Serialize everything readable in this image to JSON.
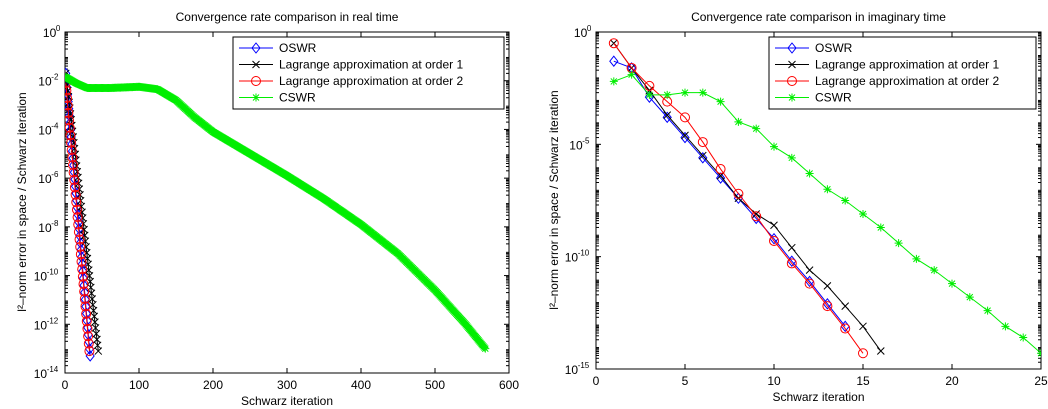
{
  "chart_data": [
    {
      "type": "line",
      "title": "Convergence rate comparison in real time",
      "xlabel": "Schwarz iteration",
      "ylabel": "l²–norm error in space / Schwarz iteration",
      "xscale": "linear",
      "yscale": "log",
      "xlim": [
        0,
        600
      ],
      "ylim_exp": [
        -14,
        0
      ],
      "x_ticks": [
        0,
        100,
        200,
        300,
        400,
        500,
        600
      ],
      "y_tick_exps": [
        0,
        -2,
        -4,
        -6,
        -8,
        -10,
        -12,
        -14
      ],
      "legend_position": "top-right",
      "series": [
        {
          "name": "OSWR",
          "color": "#0000ff",
          "marker": "diamond",
          "x": [
            1,
            34
          ],
          "y_exp": [
            -1.7,
            -13.3
          ]
        },
        {
          "name": "Lagrange approximation at order 1",
          "color": "#000000",
          "marker": "x",
          "x": [
            1,
            45
          ],
          "y_exp": [
            -1.7,
            -13.1
          ]
        },
        {
          "name": "Lagrange approximation at order 2",
          "color": "#ff0000",
          "marker": "circle",
          "x": [
            1,
            33
          ],
          "y_exp": [
            -2.1,
            -13.1
          ]
        },
        {
          "name": "CSWR",
          "color": "#00ee00",
          "marker": "star",
          "x": [
            1,
            15,
            30,
            60,
            100,
            125,
            150,
            175,
            200,
            250,
            300,
            350,
            400,
            450,
            500,
            540,
            568
          ],
          "y_exp": [
            -1.85,
            -2.1,
            -2.3,
            -2.3,
            -2.25,
            -2.35,
            -2.8,
            -3.5,
            -4.1,
            -5.0,
            -5.9,
            -6.85,
            -7.9,
            -9.1,
            -10.6,
            -11.95,
            -13.0
          ]
        }
      ]
    },
    {
      "type": "line",
      "title": "Convergence rate comparison in imaginary time",
      "xlabel": "Schwarz iteration",
      "ylabel": "l²–norm error in space / Schwarz iteration",
      "xscale": "linear",
      "yscale": "log",
      "xlim": [
        0,
        25
      ],
      "ylim_exp": [
        -15,
        0
      ],
      "x_ticks": [
        0,
        5,
        10,
        15,
        20,
        25
      ],
      "y_tick_exps": [
        0,
        -5,
        -10,
        -15
      ],
      "legend_position": "top-right",
      "series": [
        {
          "name": "OSWR",
          "color": "#0000ff",
          "marker": "diamond",
          "x": [
            1,
            2,
            3,
            4,
            5,
            6,
            7,
            8,
            9,
            10,
            11,
            12,
            13,
            14
          ],
          "y_exp": [
            -1.3,
            -1.6,
            -2.9,
            -3.8,
            -4.7,
            -5.6,
            -6.5,
            -7.4,
            -8.3,
            -9.2,
            -10.2,
            -11.1,
            -12.1,
            -13.1
          ]
        },
        {
          "name": "Lagrange approximation at order 1",
          "color": "#000000",
          "marker": "x",
          "x": [
            1,
            2,
            3,
            4,
            5,
            6,
            7,
            8,
            9,
            10,
            11,
            12,
            13,
            14,
            15,
            16
          ],
          "y_exp": [
            -0.5,
            -1.6,
            -2.6,
            -3.7,
            -4.6,
            -5.5,
            -6.4,
            -7.4,
            -8.1,
            -8.6,
            -9.6,
            -10.6,
            -11.3,
            -12.2,
            -13.1,
            -14.2
          ]
        },
        {
          "name": "Lagrange approximation at order 2",
          "color": "#ff0000",
          "marker": "circle",
          "x": [
            1,
            2,
            3,
            4,
            5,
            6,
            7,
            8,
            9,
            10,
            11,
            12,
            13,
            14,
            15
          ],
          "y_exp": [
            -0.5,
            -1.6,
            -2.4,
            -3.1,
            -3.8,
            -4.9,
            -6.1,
            -7.2,
            -8.2,
            -9.3,
            -10.3,
            -11.2,
            -12.2,
            -13.2,
            -14.3
          ]
        },
        {
          "name": "CSWR",
          "color": "#00ee00",
          "marker": "star",
          "x": [
            1,
            2,
            3,
            4,
            5,
            6,
            7,
            8,
            9,
            10,
            11,
            12,
            13,
            14,
            15,
            16,
            17,
            18,
            19,
            20,
            21,
            22,
            23,
            24,
            25
          ],
          "y_exp": [
            -2.2,
            -1.9,
            -2.8,
            -2.8,
            -2.7,
            -2.7,
            -3.1,
            -4.0,
            -4.3,
            -5.1,
            -5.6,
            -6.3,
            -7.0,
            -7.5,
            -8.1,
            -8.7,
            -9.4,
            -10.1,
            -10.6,
            -11.2,
            -11.8,
            -12.4,
            -13.1,
            -13.6,
            -14.3
          ]
        }
      ]
    }
  ]
}
